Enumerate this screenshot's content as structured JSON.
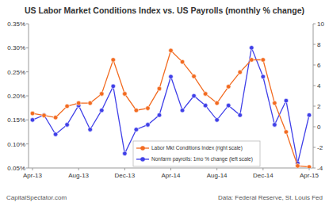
{
  "chart_data": {
    "type": "line",
    "title": "US Labor Market Conditions Index vs. US Payrolls (monthly % change)",
    "annotations": [
      "CapitalSpectator.com",
      "Data: Federal Reserve, St. Louis Fed"
    ],
    "categories": [
      "Apr-13",
      null,
      null,
      null,
      "Aug-13",
      null,
      null,
      null,
      "Dec-13",
      null,
      null,
      null,
      "Apr-14",
      null,
      null,
      null,
      "Aug-14",
      null,
      null,
      null,
      "Dec-14",
      null,
      null,
      null,
      "Apr-15"
    ],
    "series": [
      {
        "name": "Labor Mkt Conditions Index (right scale)",
        "color": "#f26b21",
        "axis": "y2",
        "marker": "circle",
        "line_style": "solid",
        "values": [
          1.3,
          1.1,
          0.9,
          2.0,
          2.3,
          2.3,
          3.2,
          6.5,
          3.2,
          1.6,
          1.8,
          3.7,
          7.4,
          6.3,
          4.9,
          3.2,
          2.3,
          3.9,
          5.3,
          6.5,
          6.5,
          2.3,
          -0.5,
          -3.8,
          -3.9
        ]
      },
      {
        "name": "Nonfarm payrolls: 1mo % change (left scale)",
        "color": "#4040e8",
        "marker": "circle",
        "line_style": "solid",
        "values": [
          0.15,
          0.16,
          0.12,
          0.14,
          0.18,
          0.13,
          0.17,
          0.22,
          0.08,
          0.13,
          0.14,
          0.16,
          0.24,
          0.17,
          0.2,
          0.18,
          0.15,
          0.18,
          0.16,
          0.3,
          0.24,
          0.14,
          0.19,
          0.06,
          0.16
        ]
      }
    ],
    "ylim": [
      0.05,
      0.35
    ],
    "yticks": [
      {
        "value": 0.05,
        "label": "0.05%"
      },
      {
        "value": 0.1,
        "label": "0.10%"
      },
      {
        "value": 0.15,
        "label": "0.15%"
      },
      {
        "value": 0.2,
        "label": "0.20%"
      },
      {
        "value": 0.25,
        "label": "0.25%"
      },
      {
        "value": 0.3,
        "label": "0.30%"
      },
      {
        "value": 0.35,
        "label": "0.35%"
      }
    ],
    "y2lim": [
      -4,
      10
    ],
    "y2ticks": [
      -4,
      -2,
      0,
      2,
      4,
      6,
      8,
      10
    ],
    "grid": false,
    "legend": "bottom"
  }
}
